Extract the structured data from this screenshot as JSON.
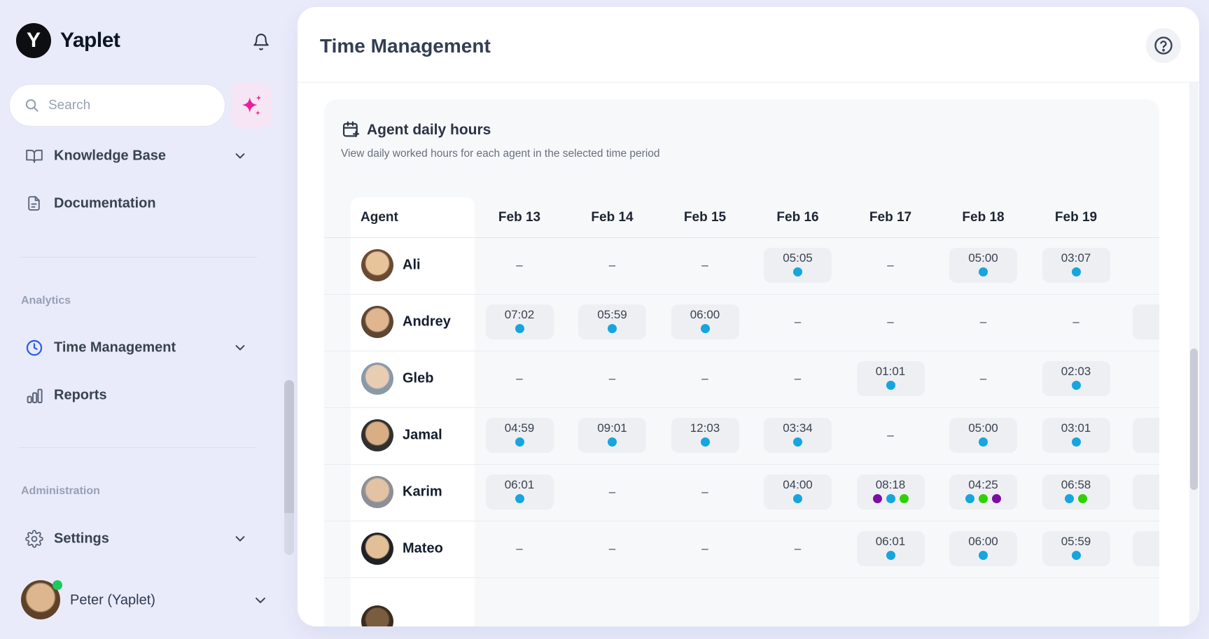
{
  "sidebar": {
    "brand": "Yaplet",
    "logo_letter": "Y",
    "search_placeholder": "Search",
    "items": [
      {
        "label": "Knowledge Base",
        "expandable": true
      },
      {
        "label": "Documentation",
        "expandable": false
      }
    ],
    "sections": [
      {
        "title": "Analytics",
        "items": [
          {
            "label": "Time Management",
            "expandable": true,
            "active": true
          },
          {
            "label": "Reports",
            "expandable": false,
            "active": false
          }
        ]
      },
      {
        "title": "Administration",
        "items": [
          {
            "label": "Settings",
            "expandable": true,
            "active": false
          }
        ]
      }
    ],
    "user": {
      "name": "Peter (Yaplet)",
      "status": "online",
      "avatar": {
        "skin": "#dDB68F",
        "hair": "#5f4128"
      }
    }
  },
  "header": {
    "title": "Time Management"
  },
  "card": {
    "title": "Agent daily hours",
    "subtitle": "View daily worked hours for each agent in the selected time period"
  },
  "table": {
    "agent_header": "Agent",
    "date_headers": [
      "Feb 13",
      "Feb 14",
      "Feb 15",
      "Feb 16",
      "Feb 17",
      "Feb 18",
      "Feb 19"
    ],
    "empty_cell": "–",
    "dot_colors": {
      "blue": "#16a5de",
      "green": "#2ed201",
      "purple": "#7c0da6"
    },
    "rows": [
      {
        "name": "Ali",
        "avatar": {
          "skin": "#e8c49a",
          "hair": "#6b4a33"
        },
        "overflow": false,
        "cells": [
          null,
          null,
          null,
          {
            "time": "05:05",
            "dots": [
              "blue"
            ]
          },
          null,
          {
            "time": "05:00",
            "dots": [
              "blue"
            ]
          },
          {
            "time": "03:07",
            "dots": [
              "blue"
            ]
          }
        ]
      },
      {
        "name": "Andrey",
        "avatar": {
          "skin": "#dfb68f",
          "hair": "#5d4632"
        },
        "overflow": true,
        "cells": [
          {
            "time": "07:02",
            "dots": [
              "blue"
            ]
          },
          {
            "time": "05:59",
            "dots": [
              "blue"
            ]
          },
          {
            "time": "06:00",
            "dots": [
              "blue"
            ]
          },
          null,
          null,
          null,
          null
        ]
      },
      {
        "name": "Gleb",
        "avatar": {
          "skin": "#e9cdb2",
          "hair": "#8a99a8"
        },
        "overflow": false,
        "cells": [
          null,
          null,
          null,
          null,
          {
            "time": "01:01",
            "dots": [
              "blue"
            ]
          },
          null,
          {
            "time": "02:03",
            "dots": [
              "blue"
            ]
          }
        ]
      },
      {
        "name": "Jamal",
        "avatar": {
          "skin": "#d9ae85",
          "hair": "#31302f"
        },
        "overflow": true,
        "cells": [
          {
            "time": "04:59",
            "dots": [
              "blue"
            ]
          },
          {
            "time": "09:01",
            "dots": [
              "blue"
            ]
          },
          {
            "time": "12:03",
            "dots": [
              "blue"
            ]
          },
          {
            "time": "03:34",
            "dots": [
              "blue"
            ]
          },
          null,
          {
            "time": "05:00",
            "dots": [
              "blue"
            ]
          },
          {
            "time": "03:01",
            "dots": [
              "blue"
            ]
          }
        ]
      },
      {
        "name": "Karim",
        "avatar": {
          "skin": "#e3c3a4",
          "hair": "#8c8f96"
        },
        "overflow": true,
        "cells": [
          {
            "time": "06:01",
            "dots": [
              "blue"
            ]
          },
          null,
          null,
          {
            "time": "04:00",
            "dots": [
              "blue"
            ]
          },
          {
            "time": "08:18",
            "dots": [
              "purple",
              "blue",
              "green"
            ]
          },
          {
            "time": "04:25",
            "dots": [
              "blue",
              "green",
              "purple"
            ]
          },
          {
            "time": "06:58",
            "dots": [
              "blue",
              "green"
            ]
          }
        ]
      },
      {
        "name": "Mateo",
        "avatar": {
          "skin": "#e3bf98",
          "hair": "#1f2125"
        },
        "overflow": true,
        "cells": [
          null,
          null,
          null,
          null,
          {
            "time": "06:01",
            "dots": [
              "blue"
            ]
          },
          {
            "time": "06:00",
            "dots": [
              "blue"
            ]
          },
          {
            "time": "05:59",
            "dots": [
              "blue"
            ]
          }
        ]
      }
    ],
    "partial_row": {
      "avatar": {
        "skin": "#7a5c3f",
        "hair": "#3a2c1e"
      }
    }
  }
}
